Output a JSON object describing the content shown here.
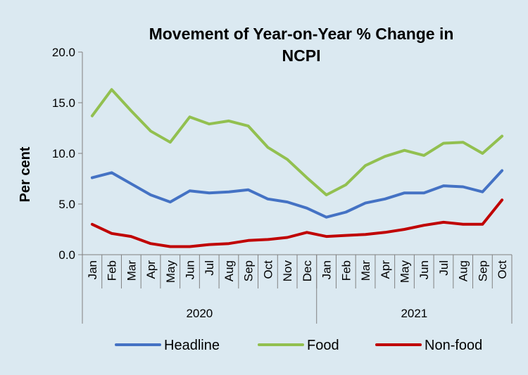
{
  "chart_data": {
    "type": "line",
    "title": [
      "Movement of Year-on-Year % Change in",
      "NCPI"
    ],
    "xlabel": "",
    "ylabel": "Per cent",
    "ylim": [
      0,
      20
    ],
    "yticks": [
      "0.0",
      "5.0",
      "10.0",
      "15.0",
      "20.0"
    ],
    "grid": false,
    "legend_position": "bottom",
    "categories": [
      "Jan",
      "Feb",
      "Mar",
      "Apr",
      "May",
      "Jun",
      "Jul",
      "Aug",
      "Sep",
      "Oct",
      "Nov",
      "Dec",
      "Jan",
      "Feb",
      "Mar",
      "Apr",
      "May",
      "Jun",
      "Jul",
      "Aug",
      "Sep",
      "Oct"
    ],
    "year_groups": [
      {
        "label": "2020",
        "count": 12
      },
      {
        "label": "2021",
        "count": 10
      }
    ],
    "series": [
      {
        "name": "Headline",
        "color": "#4472c4",
        "values": [
          7.6,
          8.1,
          7.0,
          5.9,
          5.2,
          6.3,
          6.1,
          6.2,
          6.4,
          5.5,
          5.2,
          4.6,
          3.7,
          4.2,
          5.1,
          5.5,
          6.1,
          6.1,
          6.8,
          6.7,
          6.2,
          8.3
        ]
      },
      {
        "name": "Food",
        "color": "#92c050",
        "values": [
          13.7,
          16.3,
          14.2,
          12.2,
          11.1,
          13.6,
          12.9,
          13.2,
          12.7,
          10.6,
          9.4,
          7.6,
          5.9,
          6.9,
          8.8,
          9.7,
          10.3,
          9.8,
          11.0,
          11.1,
          10.0,
          11.7
        ]
      },
      {
        "name": "Non-food",
        "color": "#c00000",
        "values": [
          3.0,
          2.1,
          1.8,
          1.1,
          0.8,
          0.8,
          1.0,
          1.1,
          1.4,
          1.5,
          1.7,
          2.2,
          1.8,
          1.9,
          2.0,
          2.2,
          2.5,
          2.9,
          3.2,
          3.0,
          3.0,
          5.4
        ]
      }
    ]
  }
}
